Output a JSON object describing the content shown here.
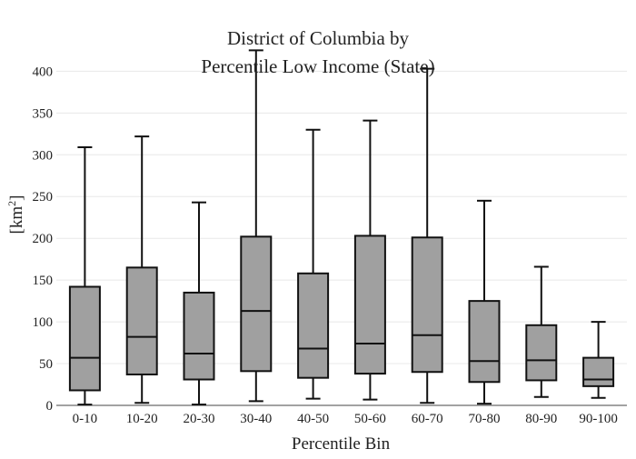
{
  "chart_data": {
    "type": "box",
    "title_lines": [
      "District of Columbia  by",
      "Percentile Low Income (State)"
    ],
    "xlabel": "Percentile Bin",
    "ylabel_base": "[km",
    "ylabel_sup": "2",
    "ylabel_end": "]",
    "ylim": [
      0,
      420
    ],
    "yticks": [
      0,
      50,
      100,
      150,
      200,
      250,
      300,
      350,
      400
    ],
    "grid": true,
    "box_color": "#a0a0a0",
    "categories": [
      "0-10",
      "10-20",
      "20-30",
      "30-40",
      "40-50",
      "50-60",
      "60-70",
      "70-80",
      "80-90",
      "90-100"
    ],
    "boxes": [
      {
        "min": 1,
        "q1": 18,
        "median": 57,
        "q3": 142,
        "max": 309
      },
      {
        "min": 3,
        "q1": 37,
        "median": 82,
        "q3": 165,
        "max": 322
      },
      {
        "min": 1,
        "q1": 31,
        "median": 62,
        "q3": 135,
        "max": 243
      },
      {
        "min": 5,
        "q1": 41,
        "median": 113,
        "q3": 202,
        "max": 425
      },
      {
        "min": 8,
        "q1": 33,
        "median": 68,
        "q3": 158,
        "max": 330
      },
      {
        "min": 7,
        "q1": 38,
        "median": 74,
        "q3": 203,
        "max": 341
      },
      {
        "min": 3,
        "q1": 40,
        "median": 84,
        "q3": 201,
        "max": 403
      },
      {
        "min": 2,
        "q1": 28,
        "median": 53,
        "q3": 125,
        "max": 245
      },
      {
        "min": 10,
        "q1": 30,
        "median": 54,
        "q3": 96,
        "max": 166
      },
      {
        "min": 9,
        "q1": 23,
        "median": 31,
        "q3": 57,
        "max": 100
      }
    ]
  }
}
